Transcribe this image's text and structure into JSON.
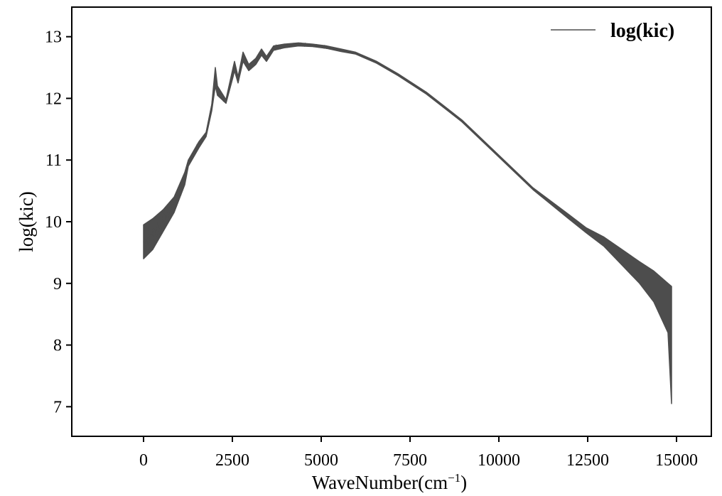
{
  "chart_data": {
    "type": "line",
    "title": "",
    "xlabel": "WaveNumber(cm",
    "xlabel_sup": "−1",
    "xlabel_close": ")",
    "ylabel": "log(kic)",
    "xlim": [
      -2020,
      15980
    ],
    "ylim": [
      6.52,
      13.48
    ],
    "xticks": [
      0,
      2500,
      5000,
      7500,
      10000,
      12500,
      15000
    ],
    "xtick_labels": [
      "0",
      "2500",
      "5000",
      "7500",
      "10000",
      "12500",
      "15000"
    ],
    "yticks": [
      7,
      8,
      9,
      10,
      11,
      12,
      13
    ],
    "ytick_labels": [
      "7",
      "8",
      "9",
      "10",
      "11",
      "12",
      "13"
    ],
    "grid": false,
    "legend": {
      "position": "top-right",
      "entries": [
        "log(kic)"
      ]
    },
    "line_color": "#4d4d4d",
    "series": [
      {
        "name": "log(kic)",
        "x": [
          0,
          260,
          560,
          860,
          1160,
          1260,
          1560,
          1760,
          1920,
          2020,
          2080,
          2320,
          2520,
          2560,
          2660,
          2800,
          2960,
          3160,
          3320,
          3460,
          3660,
          3960,
          4360,
          4760,
          5160,
          5560,
          5960,
          6560,
          7160,
          7960,
          8960,
          9960,
          10960,
          11960,
          12460,
          12960,
          13460,
          13960,
          14360,
          14760,
          14860
        ],
        "upper": [
          9.95,
          10.05,
          10.2,
          10.4,
          10.8,
          11.0,
          11.3,
          11.45,
          11.9,
          12.5,
          12.2,
          11.98,
          12.5,
          12.6,
          12.35,
          12.75,
          12.55,
          12.65,
          12.8,
          12.68,
          12.85,
          12.88,
          12.9,
          12.88,
          12.85,
          12.8,
          12.75,
          12.6,
          12.4,
          12.1,
          11.65,
          11.1,
          10.55,
          10.12,
          9.9,
          9.75,
          9.55,
          9.35,
          9.2,
          9.0,
          8.95
        ],
        "lower": [
          9.4,
          9.55,
          9.85,
          10.15,
          10.6,
          10.9,
          11.2,
          11.38,
          11.8,
          12.2,
          12.05,
          11.92,
          12.35,
          12.45,
          12.25,
          12.6,
          12.45,
          12.55,
          12.7,
          12.6,
          12.78,
          12.82,
          12.85,
          12.84,
          12.81,
          12.76,
          12.72,
          12.57,
          12.37,
          12.07,
          11.62,
          11.07,
          10.52,
          10.05,
          9.82,
          9.6,
          9.3,
          9.0,
          8.7,
          8.2,
          7.05
        ]
      }
    ]
  }
}
